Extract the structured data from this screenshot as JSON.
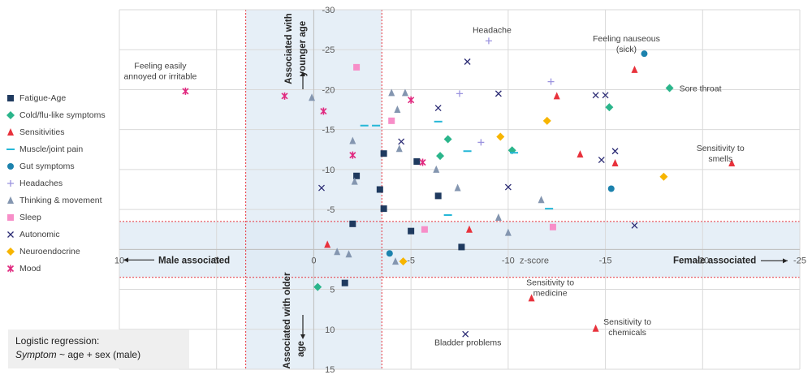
{
  "chart_data": {
    "type": "scatter",
    "x_axis": {
      "title": "z-score",
      "range": [
        10,
        -25
      ],
      "ticks": [
        10,
        5,
        0,
        -5,
        -10,
        -15,
        -20,
        -25
      ]
    },
    "y_axis": {
      "range": [
        -30,
        15
      ],
      "ticks": [
        -30,
        -25,
        -20,
        -15,
        -10,
        -5,
        0,
        5,
        10,
        15
      ]
    },
    "grid": true,
    "legend_position": "left",
    "bands": [
      {
        "axis": "x",
        "from": 3.5,
        "to": -3.5
      },
      {
        "axis": "y",
        "from": -3.5,
        "to": 3.5
      }
    ],
    "annotations": {
      "younger": "Associated with younger age",
      "older": "Associated with older age",
      "male": "Male associated",
      "female": "Female associated"
    },
    "series": [
      {
        "name": "Fatigue-Age",
        "marker": "square",
        "color": "#1f3a5f",
        "points": [
          [
            -3.6,
            -12
          ],
          [
            -5.3,
            -11
          ],
          [
            -2.2,
            -9.2
          ],
          [
            -3.4,
            -7.5
          ],
          [
            -6.4,
            -6.7
          ],
          [
            -3.6,
            -5.1
          ],
          [
            -2,
            -3.2
          ],
          [
            -5,
            -2.3
          ],
          [
            -7.6,
            -0.3
          ],
          [
            -1.6,
            4.2
          ]
        ]
      },
      {
        "name": "Cold/flu-like symptoms",
        "marker": "diamond",
        "color": "#2bb58b",
        "points": [
          [
            -18.3,
            -20.2
          ],
          [
            -15.2,
            -17.8
          ],
          [
            -6.9,
            -13.8
          ],
          [
            -10.2,
            -12.4
          ],
          [
            -6.5,
            -11.7
          ],
          [
            -0.2,
            4.7
          ]
        ]
      },
      {
        "name": "Sensitivities",
        "marker": "triangle",
        "color": "#e8323c",
        "points": [
          [
            -16.5,
            -22.5
          ],
          [
            -12.5,
            -19.2
          ],
          [
            -13.7,
            -11.9
          ],
          [
            -15.5,
            -10.8
          ],
          [
            -21.5,
            -10.8
          ],
          [
            -8,
            -2.5
          ],
          [
            -0.7,
            -0.6
          ],
          [
            -11.2,
            6.1
          ],
          [
            -14.5,
            9.9
          ]
        ]
      },
      {
        "name": "Muscle/joint pain",
        "marker": "dash",
        "color": "#25b7d7",
        "points": [
          [
            -2.6,
            -15.5
          ],
          [
            -3.2,
            -15.5
          ],
          [
            -6.4,
            -16
          ],
          [
            -7.9,
            -12.3
          ],
          [
            -10.3,
            -12.1
          ],
          [
            -6.9,
            -4.3
          ],
          [
            -12.1,
            -5.1
          ]
        ]
      },
      {
        "name": "Gut symptoms",
        "marker": "circle",
        "color": "#1c82ad",
        "points": [
          [
            -17,
            -24.5
          ],
          [
            -15.3,
            -7.6
          ],
          [
            -3.9,
            0.5
          ]
        ]
      },
      {
        "name": "Headaches",
        "marker": "plus",
        "color": "#9b93df",
        "points": [
          [
            -9,
            -26.1
          ],
          [
            -12.2,
            -21
          ],
          [
            -7.5,
            -19.5
          ],
          [
            -8.6,
            -13.4
          ]
        ]
      },
      {
        "name": "Thinking & movement",
        "marker": "triangle",
        "color": "#8496b0",
        "points": [
          [
            0.1,
            -19
          ],
          [
            -4,
            -19.6
          ],
          [
            -4.7,
            -19.6
          ],
          [
            -4.3,
            -17.5
          ],
          [
            -2,
            -13.6
          ],
          [
            -4.4,
            -12.6
          ],
          [
            -6.3,
            -10
          ],
          [
            -7.4,
            -7.7
          ],
          [
            -2.1,
            -8.5
          ],
          [
            -11.7,
            -6.2
          ],
          [
            -9.5,
            -4
          ],
          [
            -10,
            -2.1
          ],
          [
            -1.2,
            0.3
          ],
          [
            -1.8,
            0.6
          ],
          [
            -4.2,
            1.5
          ]
        ]
      },
      {
        "name": "Sleep",
        "marker": "square",
        "color": "#f78ec8",
        "points": [
          [
            -2.2,
            -22.8
          ],
          [
            -4,
            -16.1
          ],
          [
            -5.7,
            -2.5
          ],
          [
            -12.3,
            -2.8
          ]
        ]
      },
      {
        "name": "Autonomic",
        "marker": "x",
        "color": "#2b2b74",
        "points": [
          [
            -7.9,
            -23.5
          ],
          [
            -9.5,
            -19.5
          ],
          [
            -14.5,
            -19.3
          ],
          [
            -15,
            -19.3
          ],
          [
            -6.4,
            -17.7
          ],
          [
            -4.5,
            -13.5
          ],
          [
            -15.5,
            -12.3
          ],
          [
            -14.8,
            -11.2
          ],
          [
            -10,
            -7.8
          ],
          [
            -0.4,
            -7.7
          ],
          [
            -16.5,
            -3
          ],
          [
            -7.8,
            10.6
          ]
        ]
      },
      {
        "name": "Neuroendocrine",
        "marker": "diamond",
        "color": "#f7b500",
        "points": [
          [
            -9.6,
            -14.1
          ],
          [
            -12,
            -16.1
          ],
          [
            -18,
            -9.1
          ],
          [
            -4.6,
            1.5
          ]
        ]
      },
      {
        "name": "Mood",
        "marker": "star",
        "color": "#e0297f",
        "points": [
          [
            6.6,
            -19.8
          ],
          [
            1.5,
            -19.2
          ],
          [
            -5,
            -18.7
          ],
          [
            -0.5,
            -17.3
          ],
          [
            -2,
            -11.8
          ],
          [
            -5.6,
            -10.9
          ]
        ]
      }
    ],
    "point_labels": [
      {
        "text": [
          "Feeling easily",
          "annoyed or irritable"
        ],
        "x": 6.6,
        "y": -19.8
      },
      {
        "text": [
          "Headache"
        ],
        "x": -9,
        "y": -26.1
      },
      {
        "text": [
          "Feeling nauseous",
          "(sick)"
        ],
        "x": -17,
        "y": -24.5
      },
      {
        "text": [
          "Sore throat"
        ],
        "x": -18.3,
        "y": -20.2
      },
      {
        "text": [
          "Sensitivity to",
          "smells"
        ],
        "x": -21.5,
        "y": -10.8
      },
      {
        "text": [
          "Sensitivity to",
          "medicine"
        ],
        "x": -11.2,
        "y": 6.1
      },
      {
        "text": [
          "Sensitivity to",
          "chemicals"
        ],
        "x": -14.5,
        "y": 9.9
      },
      {
        "text": [
          "Bladder problems"
        ],
        "x": -7.8,
        "y": 10.6
      }
    ]
  },
  "note": {
    "line1": "Logistic regression:",
    "line2_italic": "Symptom",
    "line2_rest": " ~ age + sex (male)"
  }
}
